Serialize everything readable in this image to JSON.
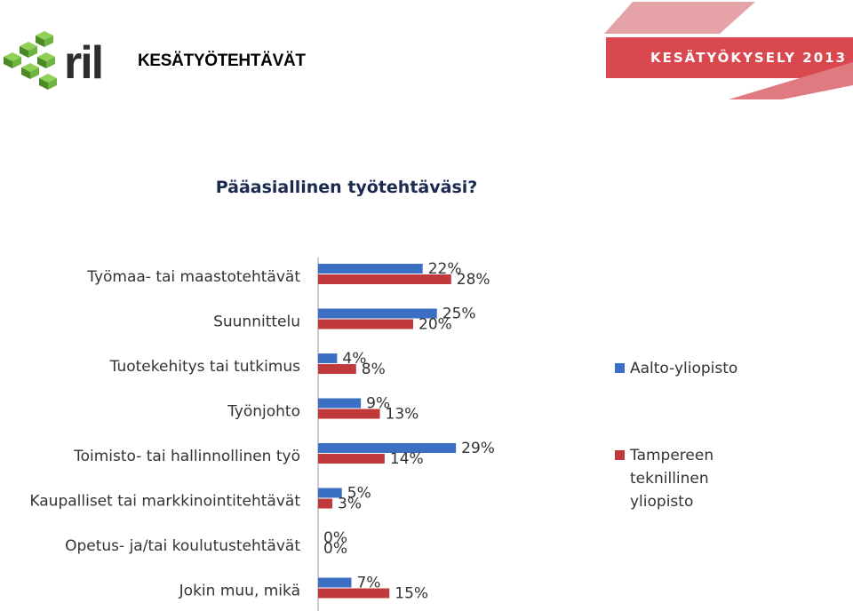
{
  "header": {
    "title": "KESÄTYÖTEHTÄVÄT",
    "banner_text": "KESÄTYÖKYSELY 2013",
    "logo_text": "ril"
  },
  "colors": {
    "aalto": "#3a6fc4",
    "tty": "#c0393b",
    "banner": "#d9484f",
    "banner_light": "#e6a3a7",
    "logo_green": "#6db33f",
    "logo_dark": "#2d2d2d"
  },
  "chart_data": {
    "type": "bar",
    "orientation": "horizontal",
    "title": "Pääasiallinen työtehtäväsi?",
    "categories": [
      "Työmaa- tai maastotehtävät",
      "Suunnittelu",
      "Tuotekehitys tai tutkimus",
      "Työnjohto",
      "Toimisto- tai hallinnollinen työ",
      "Kaupalliset tai markkinointitehtävät",
      "Opetus- ja/tai koulutustehtävät",
      "Jokin muu, mikä"
    ],
    "series": [
      {
        "name": "Aalto-yliopisto",
        "color": "#3a6fc4",
        "values": [
          22,
          25,
          4,
          9,
          29,
          5,
          0,
          7
        ],
        "labels": [
          "22%",
          "25%",
          "4%",
          "9%",
          "29%",
          "5%",
          "0%",
          "7%"
        ]
      },
      {
        "name": "Tampereen teknillinen yliopisto",
        "color": "#c0393b",
        "values": [
          28,
          20,
          8,
          13,
          14,
          3,
          0,
          15
        ],
        "labels": [
          "28%",
          "20%",
          "8%",
          "13%",
          "14%",
          "3%",
          "0%",
          "15%"
        ]
      }
    ],
    "legend_lines": [
      [
        "Aalto-yliopisto"
      ],
      [
        "Tampereen",
        "teknillinen",
        "yliopisto"
      ]
    ],
    "legend_position": "right",
    "grid": false,
    "xlim": [
      0,
      40
    ]
  }
}
